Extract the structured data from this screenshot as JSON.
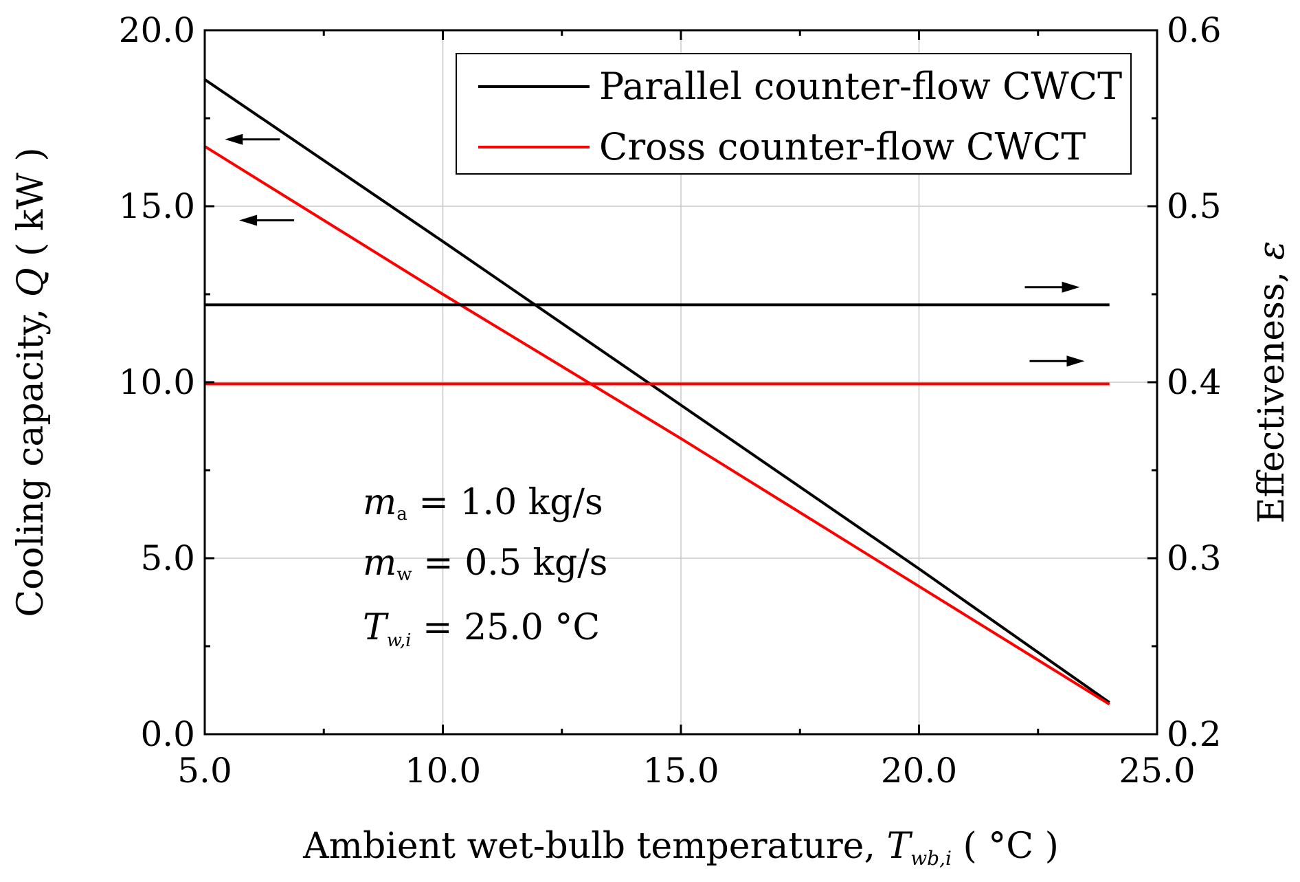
{
  "chart_data": {
    "type": "line",
    "x_axis": {
      "label_prefix": "Ambient wet-bulb temperature, ",
      "label_var": "T",
      "label_sub": "wb,i",
      "label_suffix": " ( °C )",
      "range": [
        5.0,
        25.0
      ],
      "ticks": [
        "5.0",
        "10.0",
        "15.0",
        "20.0",
        "25.0"
      ],
      "tick_values": [
        5,
        10,
        15,
        20,
        25
      ]
    },
    "y_axis_left": {
      "label_prefix": "Cooling capacity, ",
      "label_var": "Q",
      "label_suffix": " ( kW )",
      "range": [
        0.0,
        20.0
      ],
      "ticks": [
        "0.0",
        "5.0",
        "10.0",
        "15.0",
        "20.0"
      ],
      "tick_values": [
        0,
        5,
        10,
        15,
        20
      ]
    },
    "y_axis_right": {
      "label_prefix": "Effectiveness, ",
      "label_var": "ε",
      "range": [
        0.2,
        0.6
      ],
      "ticks": [
        "0.2",
        "0.3",
        "0.4",
        "0.5",
        "0.6"
      ],
      "tick_values": [
        0.2,
        0.3,
        0.4,
        0.5,
        0.6
      ]
    },
    "series": [
      {
        "name": "Parallel counter-flow CWCT — cooling capacity",
        "axis": "left",
        "color": "#000000",
        "x": [
          5,
          10,
          15,
          20,
          24
        ],
        "y": [
          18.6,
          14.0,
          9.35,
          4.7,
          0.9
        ]
      },
      {
        "name": "Cross counter-flow CWCT — cooling capacity",
        "axis": "left",
        "color": "#ff0000",
        "x": [
          5,
          10,
          15,
          20,
          24
        ],
        "y": [
          16.7,
          12.5,
          8.4,
          4.2,
          0.85
        ]
      },
      {
        "name": "Parallel counter-flow CWCT — effectiveness",
        "axis": "right",
        "color": "#000000",
        "x": [
          5,
          24
        ],
        "y": [
          0.444,
          0.444
        ]
      },
      {
        "name": "Cross counter-flow CWCT — effectiveness",
        "axis": "right",
        "color": "#ff0000",
        "x": [
          5,
          24
        ],
        "y": [
          0.399,
          0.399
        ]
      }
    ],
    "legend": {
      "position": "top-right",
      "entries": [
        {
          "label": "Parallel counter-flow CWCT",
          "color": "#000000"
        },
        {
          "label": "Cross counter-flow CWCT",
          "color": "#ff0000"
        }
      ]
    },
    "annotations": [
      {
        "var": "m",
        "sub": "a",
        "text": " = 1.0 kg/s"
      },
      {
        "var": "m",
        "sub": "w",
        "text": " = 0.5 kg/s"
      },
      {
        "var": "T",
        "sub": "w,i",
        "text": " = 25.0 °C"
      }
    ],
    "arrow_markers": [
      {
        "direction": "left",
        "series": "Parallel counter-flow CWCT",
        "x": 6.0,
        "y_left": 16.9
      },
      {
        "direction": "left",
        "series": "Cross counter-flow CWCT",
        "x": 6.3,
        "y_left": 14.6
      },
      {
        "direction": "right",
        "series": "Parallel counter-flow CWCT",
        "x": 22.8,
        "y_left": 12.7
      },
      {
        "direction": "right",
        "series": "Cross counter-flow CWCT",
        "x": 22.9,
        "y_left": 10.6
      }
    ],
    "grid": true
  }
}
